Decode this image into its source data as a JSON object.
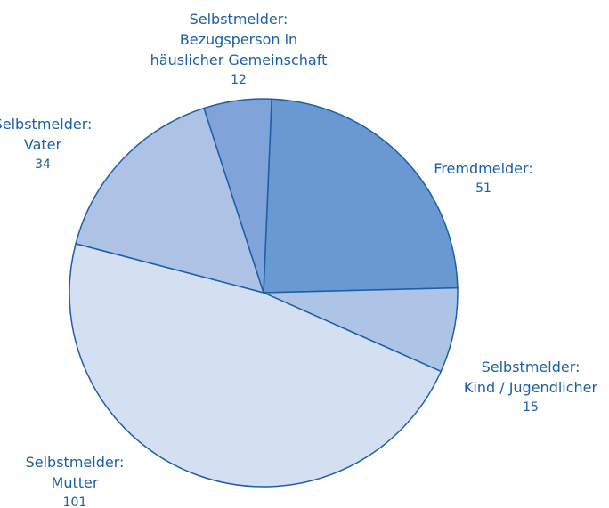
{
  "chart_data": {
    "type": "pie",
    "categories": [
      "Fremdmelder:",
      "Selbstmelder:\nKind / Jugendlicher",
      "Selbstmelder:\nMutter",
      "Selbstmelder:\nVater",
      "Selbstmelder:\nBezugsperson in\nhäuslicher Gemeinschaft"
    ],
    "values": [
      51,
      15,
      101,
      34,
      12
    ],
    "colors": [
      "#6a98d0",
      "#aec4e6",
      "#d5dff2",
      "#adc2e4",
      "#80a4d9"
    ]
  }
}
